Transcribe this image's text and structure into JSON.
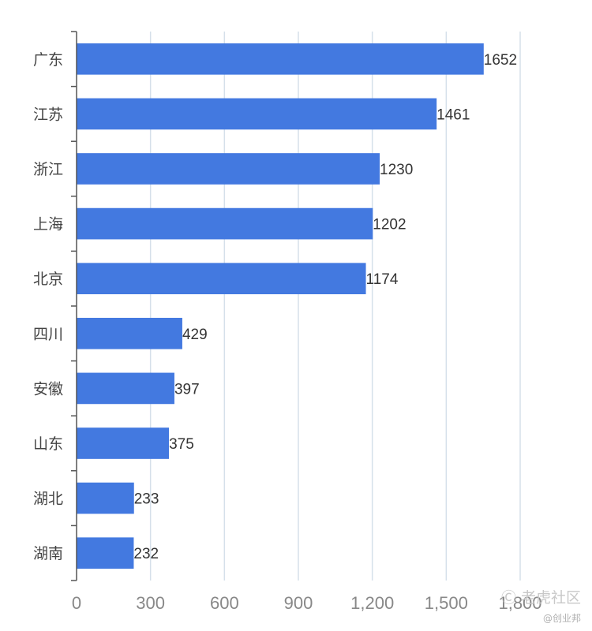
{
  "chart_data": {
    "type": "bar",
    "orientation": "horizontal",
    "title": "",
    "xlabel": "",
    "ylabel": "",
    "categories": [
      "广东",
      "江苏",
      "浙江",
      "上海",
      "北京",
      "四川",
      "安徽",
      "山东",
      "湖北",
      "湖南"
    ],
    "values": [
      1652,
      1461,
      1230,
      1202,
      1174,
      429,
      397,
      375,
      233,
      232
    ],
    "xlim": [
      0,
      1800
    ],
    "x_ticks": [
      0,
      300,
      600,
      900,
      1200,
      1500,
      1800
    ],
    "x_tick_labels": [
      "0",
      "300",
      "600",
      "900",
      "1,200",
      "1,500",
      "1,800"
    ],
    "grid": true,
    "bar_color": "#4379e0",
    "grid_color": "#d5e0ea",
    "axis_color": "#555555"
  },
  "watermark": {
    "line1": "Ⓒ 老虎社区",
    "line2": "@创业邦"
  }
}
